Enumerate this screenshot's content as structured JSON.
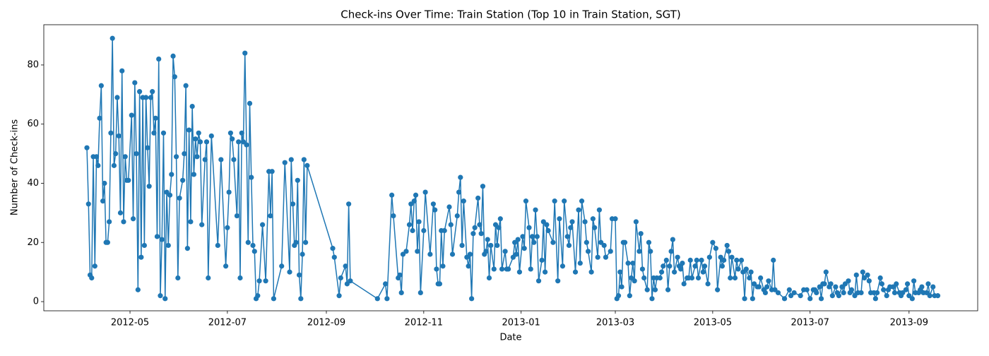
{
  "chart_data": {
    "type": "line",
    "title": "Check-ins Over Time: Train Station (Top 10 in Train Station, SGT)",
    "xlabel": "Date",
    "ylabel": "Number of Check-ins",
    "color": "#1f77b4",
    "marker": "circle",
    "xlim": [
      "2012-03-08",
      "2013-10-14"
    ],
    "xticks": [
      "2012-05",
      "2012-07",
      "2012-09",
      "2012-11",
      "2013-01",
      "2013-03",
      "2013-05",
      "2013-07",
      "2013-09"
    ],
    "ylim": [
      -3.1,
      93.6
    ],
    "yticks": [
      0,
      20,
      40,
      60,
      80
    ],
    "grid": false,
    "x": [
      "2012-04-04",
      "2012-04-05",
      "2012-04-06",
      "2012-04-07",
      "2012-04-08",
      "2012-04-09",
      "2012-04-10",
      "2012-04-11",
      "2012-04-12",
      "2012-04-13",
      "2012-04-14",
      "2012-04-15",
      "2012-04-16",
      "2012-04-17",
      "2012-04-18",
      "2012-04-19",
      "2012-04-20",
      "2012-04-21",
      "2012-04-22",
      "2012-04-23",
      "2012-04-24",
      "2012-04-25",
      "2012-04-26",
      "2012-04-27",
      "2012-04-28",
      "2012-04-29",
      "2012-04-30",
      "2012-05-02",
      "2012-05-03",
      "2012-05-04",
      "2012-05-05",
      "2012-05-06",
      "2012-05-07",
      "2012-05-08",
      "2012-05-09",
      "2012-05-10",
      "2012-05-11",
      "2012-05-12",
      "2012-05-13",
      "2012-05-14",
      "2012-05-15",
      "2012-05-16",
      "2012-05-17",
      "2012-05-18",
      "2012-05-19",
      "2012-05-20",
      "2012-05-21",
      "2012-05-22",
      "2012-05-23",
      "2012-05-24",
      "2012-05-25",
      "2012-05-26",
      "2012-05-27",
      "2012-05-28",
      "2012-05-29",
      "2012-05-30",
      "2012-05-31",
      "2012-06-01",
      "2012-06-03",
      "2012-06-04",
      "2012-06-05",
      "2012-06-06",
      "2012-06-07",
      "2012-06-08",
      "2012-06-09",
      "2012-06-10",
      "2012-06-11",
      "2012-06-12",
      "2012-06-13",
      "2012-06-14",
      "2012-06-15",
      "2012-06-17",
      "2012-06-18",
      "2012-06-19",
      "2012-06-21",
      "2012-06-25",
      "2012-06-27",
      "2012-06-30",
      "2012-07-01",
      "2012-07-02",
      "2012-07-03",
      "2012-07-04",
      "2012-07-05",
      "2012-07-07",
      "2012-07-08",
      "2012-07-09",
      "2012-07-10",
      "2012-07-11",
      "2012-07-12",
      "2012-07-13",
      "2012-07-14",
      "2012-07-15",
      "2012-07-16",
      "2012-07-17",
      "2012-07-18",
      "2012-07-19",
      "2012-07-20",
      "2012-07-21",
      "2012-07-23",
      "2012-07-25",
      "2012-07-27",
      "2012-07-28",
      "2012-07-29",
      "2012-07-30",
      "2012-08-04",
      "2012-08-06",
      "2012-08-09",
      "2012-08-10",
      "2012-08-11",
      "2012-08-12",
      "2012-08-13",
      "2012-08-14",
      "2012-08-15",
      "2012-08-16",
      "2012-08-17",
      "2012-08-18",
      "2012-08-19",
      "2012-08-20",
      "2012-09-05",
      "2012-09-06",
      "2012-09-09",
      "2012-09-10",
      "2012-09-13",
      "2012-09-14",
      "2012-09-15",
      "2012-09-16",
      "2012-10-03",
      "2012-10-08",
      "2012-10-09",
      "2012-10-12",
      "2012-10-13",
      "2012-10-16",
      "2012-10-17",
      "2012-10-18",
      "2012-10-19",
      "2012-10-21",
      "2012-10-23",
      "2012-10-24",
      "2012-10-25",
      "2012-10-26",
      "2012-10-27",
      "2012-10-28",
      "2012-10-29",
      "2012-10-30",
      "2012-11-01",
      "2012-11-02",
      "2012-11-05",
      "2012-11-07",
      "2012-11-08",
      "2012-11-09",
      "2012-11-10",
      "2012-11-11",
      "2012-11-12",
      "2012-11-13",
      "2012-11-14",
      "2012-11-17",
      "2012-11-18",
      "2012-11-19",
      "2012-11-22",
      "2012-11-23",
      "2012-11-24",
      "2012-11-25",
      "2012-11-26",
      "2012-11-28",
      "2012-11-29",
      "2012-11-30",
      "2012-12-01",
      "2012-12-02",
      "2012-12-03",
      "2012-12-05",
      "2012-12-06",
      "2012-12-07",
      "2012-12-08",
      "2012-12-09",
      "2012-12-10",
      "2012-12-11",
      "2012-12-12",
      "2012-12-13",
      "2012-12-15",
      "2012-12-16",
      "2012-12-17",
      "2012-12-18",
      "2012-12-19",
      "2012-12-20",
      "2012-12-22",
      "2012-12-23",
      "2012-12-24",
      "2012-12-27",
      "2012-12-28",
      "2012-12-29",
      "2012-12-30",
      "2012-12-31",
      "2013-01-02",
      "2013-01-03",
      "2013-01-04",
      "2013-01-06",
      "2013-01-07",
      "2013-01-08",
      "2013-01-09",
      "2013-01-10",
      "2013-01-11",
      "2013-01-12",
      "2013-01-14",
      "2013-01-15",
      "2013-01-16",
      "2013-01-17",
      "2013-01-18",
      "2013-01-21",
      "2013-01-22",
      "2013-01-24",
      "2013-01-25",
      "2013-01-27",
      "2013-01-28",
      "2013-01-30",
      "2013-01-31",
      "2013-02-01",
      "2013-02-02",
      "2013-02-04",
      "2013-02-06",
      "2013-02-07",
      "2013-02-08",
      "2013-02-10",
      "2013-02-11",
      "2013-02-12",
      "2013-02-14",
      "2013-02-15",
      "2013-02-16",
      "2013-02-18",
      "2013-02-19",
      "2013-02-20",
      "2013-02-22",
      "2013-02-23",
      "2013-02-26",
      "2013-02-27",
      "2013-03-01",
      "2013-03-02",
      "2013-03-03",
      "2013-03-04",
      "2013-03-05",
      "2013-03-06",
      "2013-03-07",
      "2013-03-09",
      "2013-03-10",
      "2013-03-11",
      "2013-03-12",
      "2013-03-13",
      "2013-03-14",
      "2013-03-16",
      "2013-03-17",
      "2013-03-18",
      "2013-03-19",
      "2013-03-21",
      "2013-03-22",
      "2013-03-23",
      "2013-03-24",
      "2013-03-25",
      "2013-03-26",
      "2013-03-27",
      "2013-03-29",
      "2013-03-30",
      "2013-03-31",
      "2013-04-02",
      "2013-04-03",
      "2013-04-04",
      "2013-04-05",
      "2013-04-06",
      "2013-04-07",
      "2013-04-09",
      "2013-04-10",
      "2013-04-11",
      "2013-04-12",
      "2013-04-13",
      "2013-04-15",
      "2013-04-16",
      "2013-04-17",
      "2013-04-18",
      "2013-04-20",
      "2013-04-21",
      "2013-04-22",
      "2013-04-24",
      "2013-04-25",
      "2013-04-26",
      "2013-04-28",
      "2013-04-29",
      "2013-05-01",
      "2013-05-03",
      "2013-05-04",
      "2013-05-06",
      "2013-05-07",
      "2013-05-08",
      "2013-05-10",
      "2013-05-11",
      "2013-05-12",
      "2013-05-13",
      "2013-05-15",
      "2013-05-16",
      "2013-05-17",
      "2013-05-19",
      "2013-05-20",
      "2013-05-21",
      "2013-05-22",
      "2013-05-24",
      "2013-05-25",
      "2013-05-26",
      "2013-05-27",
      "2013-05-29",
      "2013-05-30",
      "2013-05-31",
      "2013-06-02",
      "2013-06-03",
      "2013-06-04",
      "2013-06-05",
      "2013-06-07",
      "2013-06-08",
      "2013-06-09",
      "2013-06-11",
      "2013-06-15",
      "2013-06-18",
      "2013-06-19",
      "2013-06-21",
      "2013-06-25",
      "2013-06-27",
      "2013-06-29",
      "2013-07-01",
      "2013-07-03",
      "2013-07-04",
      "2013-07-05",
      "2013-07-07",
      "2013-07-08",
      "2013-07-09",
      "2013-07-10",
      "2013-07-11",
      "2013-07-13",
      "2013-07-14",
      "2013-07-15",
      "2013-07-17",
      "2013-07-18",
      "2013-07-19",
      "2013-07-21",
      "2013-07-22",
      "2013-07-23",
      "2013-07-25",
      "2013-07-26",
      "2013-07-27",
      "2013-07-29",
      "2013-07-30",
      "2013-07-31",
      "2013-08-02",
      "2013-08-03",
      "2013-08-04",
      "2013-08-06",
      "2013-08-07",
      "2013-08-08",
      "2013-08-10",
      "2013-08-11",
      "2013-08-12",
      "2013-08-14",
      "2013-08-15",
      "2013-08-16",
      "2013-08-18",
      "2013-08-19",
      "2013-08-20",
      "2013-08-22",
      "2013-08-23",
      "2013-08-24",
      "2013-08-26",
      "2013-08-27",
      "2013-08-28",
      "2013-08-30",
      "2013-08-31",
      "2013-09-01",
      "2013-09-03",
      "2013-09-04",
      "2013-09-05",
      "2013-09-07",
      "2013-09-08",
      "2013-09-09",
      "2013-09-10",
      "2013-09-12",
      "2013-09-13",
      "2013-09-14",
      "2013-09-16",
      "2013-09-17",
      "2013-09-19"
    ],
    "values": [
      52,
      33,
      9,
      8,
      49,
      12,
      49,
      46,
      62,
      73,
      34,
      40,
      20,
      20,
      27,
      57,
      89,
      46,
      50,
      69,
      56,
      30,
      78,
      27,
      49,
      41,
      41,
      63,
      28,
      74,
      50,
      4,
      71,
      15,
      69,
      19,
      69,
      52,
      39,
      69,
      71,
      57,
      62,
      22,
      82,
      2,
      21,
      57,
      1,
      37,
      19,
      36,
      43,
      83,
      76,
      49,
      8,
      35,
      41,
      50,
      73,
      18,
      58,
      27,
      66,
      43,
      55,
      49,
      57,
      54,
      26,
      48,
      54,
      8,
      56,
      19,
      48,
      12,
      25,
      37,
      57,
      55,
      48,
      29,
      54,
      8,
      57,
      54,
      84,
      53,
      20,
      67,
      42,
      19,
      17,
      1,
      2,
      7,
      26,
      7,
      44,
      29,
      44,
      1,
      12,
      47,
      10,
      48,
      33,
      19,
      20,
      41,
      9,
      1,
      16,
      48,
      20,
      46,
      18,
      15,
      2,
      8,
      12,
      6,
      33,
      7,
      1,
      6,
      1,
      36,
      29,
      8,
      9,
      3,
      16,
      17,
      26,
      33,
      24,
      34,
      36,
      17,
      27,
      3,
      24,
      37,
      16,
      33,
      31,
      11,
      6,
      6,
      24,
      12,
      24,
      32,
      26,
      16,
      29,
      37,
      42,
      19,
      34,
      15,
      12,
      16,
      1,
      23,
      25,
      35,
      26,
      23,
      39,
      16,
      17,
      21,
      8,
      19,
      11,
      26,
      19,
      25,
      28,
      11,
      17,
      11,
      11,
      15,
      20,
      16,
      21,
      10,
      22,
      18,
      34,
      25,
      11,
      22,
      20,
      31,
      22,
      7,
      14,
      27,
      10,
      26,
      24,
      20,
      34,
      7,
      28,
      12,
      34,
      22,
      19,
      25,
      27,
      10,
      31,
      13,
      34,
      27,
      20,
      17,
      10,
      28,
      25,
      15,
      31,
      20,
      19,
      15,
      17,
      28,
      28,
      1,
      2,
      10,
      5,
      20,
      20,
      13,
      2,
      8,
      13,
      7,
      27,
      17,
      23,
      11,
      8,
      4,
      20,
      17,
      1,
      8,
      4,
      8,
      8,
      10,
      12,
      14,
      4,
      12,
      17,
      21,
      10,
      15,
      12,
      11,
      13,
      6,
      8,
      8,
      14,
      8,
      12,
      14,
      8,
      14,
      10,
      12,
      6,
      15,
      20,
      18,
      4,
      15,
      12,
      14,
      19,
      17,
      8,
      15,
      8,
      14,
      11,
      14,
      10,
      1,
      11,
      8,
      10,
      1,
      6,
      5,
      5,
      8,
      4,
      3,
      5,
      7,
      4,
      14,
      4,
      3,
      1,
      4,
      2,
      3,
      2,
      4,
      4,
      1,
      4,
      4,
      3,
      5,
      1,
      6,
      6,
      10,
      5,
      6,
      2,
      5,
      3,
      2,
      5,
      3,
      6,
      7,
      3,
      4,
      2,
      9,
      3,
      3,
      10,
      8,
      9,
      7,
      3,
      3,
      1,
      3,
      8,
      6,
      4,
      2,
      4,
      5,
      5,
      3,
      6,
      3,
      2,
      3,
      4,
      6,
      2,
      1,
      7,
      3,
      3,
      4,
      5,
      3,
      3,
      6,
      2,
      5,
      2,
      2
    ]
  }
}
